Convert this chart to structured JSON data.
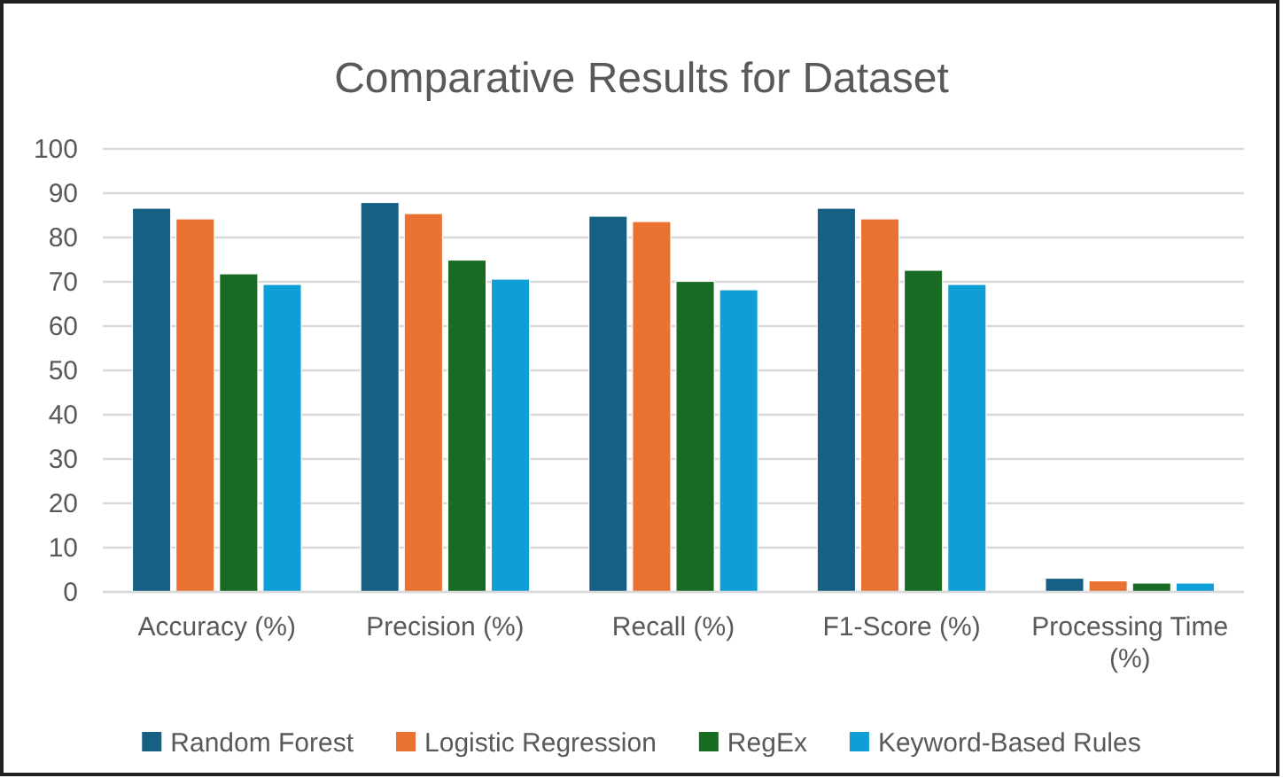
{
  "chart_data": {
    "type": "bar",
    "title": "Comparative Results for Dataset",
    "categories": [
      "Accuracy (%)",
      "Precision (%)",
      "Recall (%)",
      "F1-Score (%)",
      "Processing Time (%)"
    ],
    "series": [
      {
        "name": "Random Forest",
        "color": "#166083",
        "values": [
          86.6,
          87.9,
          84.8,
          86.6,
          3.1
        ]
      },
      {
        "name": "Logistic Regression",
        "color": "#e97132",
        "values": [
          84.2,
          85.4,
          83.6,
          84.2,
          2.5
        ]
      },
      {
        "name": "RegEx",
        "color": "#196b24",
        "values": [
          71.8,
          74.9,
          70.1,
          72.6,
          2.0
        ]
      },
      {
        "name": "Keyword-Based Rules",
        "color": "#0f9ed5",
        "values": [
          69.4,
          70.6,
          68.2,
          69.4,
          2.0
        ]
      }
    ],
    "ylim": [
      0,
      100
    ],
    "yticks": [
      0,
      10,
      20,
      30,
      40,
      50,
      60,
      70,
      80,
      90,
      100
    ],
    "grid": "y",
    "legend": "bottom"
  }
}
